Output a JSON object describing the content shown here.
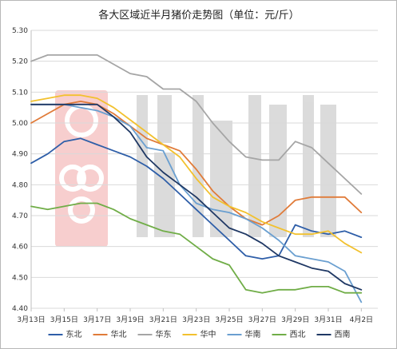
{
  "chart_data": {
    "type": "line",
    "title": "各大区域近半月猪价走势图（单位：元/斤）",
    "xlabel": "",
    "ylabel": "",
    "ylim": [
      4.4,
      5.3
    ],
    "yticks": [
      "4.40",
      "4.50",
      "4.60",
      "4.70",
      "4.80",
      "4.90",
      "5.00",
      "5.10",
      "5.20",
      "5.30"
    ],
    "xlim": [
      0,
      21
    ],
    "xticks": [
      {
        "x": 0,
        "label": "3月13日"
      },
      {
        "x": 2,
        "label": "3月15日"
      },
      {
        "x": 4,
        "label": "3月17日"
      },
      {
        "x": 6,
        "label": "3月19日"
      },
      {
        "x": 8,
        "label": "3月21日"
      },
      {
        "x": 10,
        "label": "3月23日"
      },
      {
        "x": 12,
        "label": "3月25日"
      },
      {
        "x": 14,
        "label": "3月27日"
      },
      {
        "x": 16,
        "label": "3月29日"
      },
      {
        "x": 18,
        "label": "3月31日"
      },
      {
        "x": 20,
        "label": "4月2日"
      }
    ],
    "grid": "horizontal",
    "legend": "bottom",
    "series": [
      {
        "name": "东北",
        "color": "#2e5ea8",
        "x": [
          0,
          1,
          2,
          3,
          4,
          5,
          6,
          7,
          8,
          9,
          10,
          11,
          12,
          13,
          14,
          15,
          16,
          17,
          18,
          19,
          20
        ],
        "values": [
          4.87,
          4.9,
          4.94,
          4.95,
          4.93,
          4.91,
          4.89,
          4.86,
          4.82,
          4.77,
          4.72,
          4.67,
          4.62,
          4.57,
          4.56,
          4.57,
          4.67,
          4.65,
          4.64,
          4.65,
          4.63
        ]
      },
      {
        "name": "华北",
        "color": "#e07b39",
        "x": [
          0,
          1,
          2,
          3,
          4,
          5,
          6,
          7,
          8,
          9,
          10,
          11,
          12,
          13,
          14,
          15,
          16,
          17,
          18,
          19,
          20
        ],
        "values": [
          5.0,
          5.03,
          5.06,
          5.07,
          5.06,
          5.03,
          4.99,
          4.95,
          4.93,
          4.91,
          4.85,
          4.78,
          4.73,
          4.69,
          4.67,
          4.7,
          4.75,
          4.76,
          4.76,
          4.76,
          4.71
        ]
      },
      {
        "name": "华东",
        "color": "#a5a5a5",
        "x": [
          0,
          1,
          2,
          3,
          4,
          5,
          6,
          7,
          8,
          9,
          10,
          11,
          12,
          13,
          14,
          15,
          16,
          17,
          18,
          19,
          20
        ],
        "values": [
          5.2,
          5.22,
          5.22,
          5.22,
          5.22,
          5.19,
          5.16,
          5.15,
          5.11,
          5.11,
          5.07,
          5.0,
          4.94,
          4.89,
          4.88,
          4.88,
          4.94,
          4.92,
          4.87,
          4.82,
          4.77
        ]
      },
      {
        "name": "华中",
        "color": "#f2c12e",
        "x": [
          0,
          1,
          2,
          3,
          4,
          5,
          6,
          7,
          8,
          9,
          10,
          11,
          12,
          13,
          14,
          15,
          16,
          17,
          18,
          19,
          20
        ],
        "values": [
          5.07,
          5.08,
          5.09,
          5.09,
          5.08,
          5.05,
          5.01,
          4.97,
          4.93,
          4.89,
          4.82,
          4.76,
          4.73,
          4.71,
          4.68,
          4.66,
          4.64,
          4.64,
          4.65,
          4.61,
          4.58
        ]
      },
      {
        "name": "华南",
        "color": "#6a9fd0",
        "x": [
          0,
          1,
          2,
          3,
          4,
          5,
          6,
          7,
          8,
          9,
          10,
          11,
          12,
          13,
          14,
          15,
          16,
          17,
          18,
          19,
          20
        ],
        "values": [
          5.06,
          5.06,
          5.06,
          5.05,
          5.04,
          5.02,
          4.99,
          4.92,
          4.91,
          4.8,
          4.74,
          4.72,
          4.71,
          4.69,
          4.66,
          4.62,
          4.57,
          4.56,
          4.55,
          4.52,
          4.42
        ]
      },
      {
        "name": "西北",
        "color": "#70ad47",
        "x": [
          0,
          1,
          2,
          3,
          4,
          5,
          6,
          7,
          8,
          9,
          10,
          11,
          12,
          13,
          14,
          15,
          16,
          17,
          18,
          19,
          20
        ],
        "values": [
          4.73,
          4.72,
          4.73,
          4.74,
          4.74,
          4.72,
          4.69,
          4.67,
          4.65,
          4.64,
          4.6,
          4.56,
          4.54,
          4.46,
          4.45,
          4.46,
          4.46,
          4.47,
          4.47,
          4.45,
          4.45
        ]
      },
      {
        "name": "西南",
        "color": "#1f3864",
        "x": [
          0,
          1,
          2,
          3,
          4,
          5,
          6,
          7,
          8,
          9,
          10,
          11,
          12,
          13,
          14,
          15,
          16,
          17,
          18,
          19,
          20
        ],
        "values": [
          5.06,
          5.06,
          5.06,
          5.06,
          5.06,
          5.02,
          4.97,
          4.89,
          4.84,
          4.8,
          4.76,
          4.71,
          4.66,
          4.64,
          4.61,
          4.57,
          4.55,
          4.53,
          4.52,
          4.48,
          4.46
        ]
      }
    ]
  }
}
